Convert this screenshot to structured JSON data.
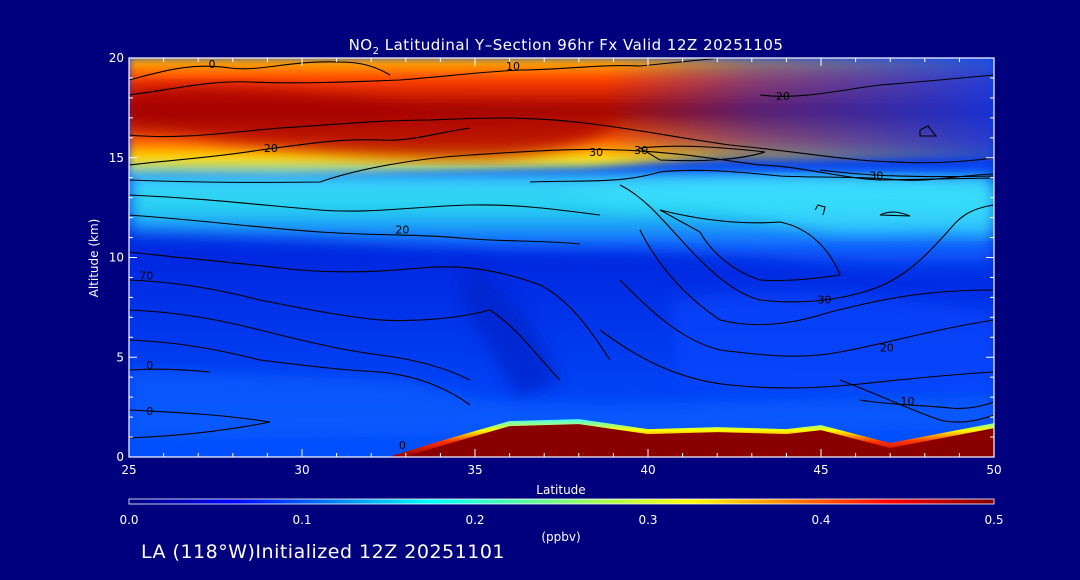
{
  "chart_data": {
    "type": "heatmap",
    "title_prefix": "NO",
    "title_sub": "2",
    "title_rest": " Latitudinal Y–Section 96hr  Fx Valid 12Z 20251105",
    "xlabel": "Latitude",
    "ylabel": "Altitude (km)",
    "xlim": [
      25,
      50
    ],
    "ylim": [
      0,
      20
    ],
    "x_ticks": [
      25,
      30,
      35,
      40,
      45,
      50
    ],
    "y_ticks": [
      0,
      5,
      10,
      15,
      20
    ],
    "colorbar": {
      "label": "(ppbv)",
      "range": [
        0.0,
        0.5
      ],
      "ticks": [
        "0.0",
        "0.1",
        "0.2",
        "0.3",
        "0.4",
        "0.5"
      ],
      "colormap": "jet"
    },
    "field_units": "ppbv",
    "stratospheric_layer": [
      {
        "lat": 25,
        "bottom_km": 14.0,
        "top_km": 20.0,
        "peak_km": 17.5,
        "peak_ppbv": 0.48
      },
      {
        "lat": 30,
        "bottom_km": 14.5,
        "top_km": 20.0,
        "peak_km": 16.5,
        "peak_ppbv": 0.5
      },
      {
        "lat": 35,
        "bottom_km": 14.5,
        "top_km": 20.0,
        "peak_km": 16.2,
        "peak_ppbv": 0.5
      },
      {
        "lat": 39,
        "bottom_km": 14.0,
        "top_km": 19.0,
        "peak_km": 16.0,
        "peak_ppbv": 0.5
      },
      {
        "lat": 42,
        "bottom_km": 14.5,
        "top_km": 17.5,
        "peak_km": 15.5,
        "peak_ppbv": 0.36
      },
      {
        "lat": 46,
        "bottom_km": 14.8,
        "top_km": 16.5,
        "peak_km": 15.5,
        "peak_ppbv": 0.24
      },
      {
        "lat": 50,
        "bottom_km": 15.0,
        "top_km": 16.0,
        "peak_km": 15.5,
        "peak_ppbv": 0.16
      }
    ],
    "terrain_km": [
      {
        "lat": 32.5,
        "alt": 0.0
      },
      {
        "lat": 34,
        "alt": 0.8
      },
      {
        "lat": 36,
        "alt": 1.8
      },
      {
        "lat": 38,
        "alt": 1.9
      },
      {
        "lat": 40,
        "alt": 1.4
      },
      {
        "lat": 42,
        "alt": 1.5
      },
      {
        "lat": 44,
        "alt": 1.4
      },
      {
        "lat": 45,
        "alt": 1.6
      },
      {
        "lat": 47,
        "alt": 0.7
      },
      {
        "lat": 50,
        "alt": 1.7
      }
    ],
    "contour_labels": [
      {
        "text": "0",
        "lat": 27.4,
        "alt": 19.5
      },
      {
        "text": "10",
        "lat": 36.1,
        "alt": 19.4
      },
      {
        "text": "20",
        "lat": 43.9,
        "alt": 17.9
      },
      {
        "text": "20",
        "lat": 29.1,
        "alt": 15.3
      },
      {
        "text": "30",
        "lat": 38.5,
        "alt": 15.1
      },
      {
        "text": "30",
        "lat": 39.8,
        "alt": 15.2
      },
      {
        "text": "30",
        "lat": 46.6,
        "alt": 13.9
      },
      {
        "text": "20",
        "lat": 32.9,
        "alt": 11.2
      },
      {
        "text": "70",
        "lat": 25.5,
        "alt": 8.9
      },
      {
        "text": "30",
        "lat": 45.1,
        "alt": 7.7
      },
      {
        "text": "20",
        "lat": 46.9,
        "alt": 5.3
      },
      {
        "text": "0",
        "lat": 25.6,
        "alt": 4.4
      },
      {
        "text": "0",
        "lat": 25.6,
        "alt": 2.1
      },
      {
        "text": "10",
        "lat": 47.5,
        "alt": 2.6
      },
      {
        "text": "0",
        "lat": 32.9,
        "alt": 0.4
      }
    ]
  },
  "footer": "LA (118°W)Initialized 12Z 20251101"
}
